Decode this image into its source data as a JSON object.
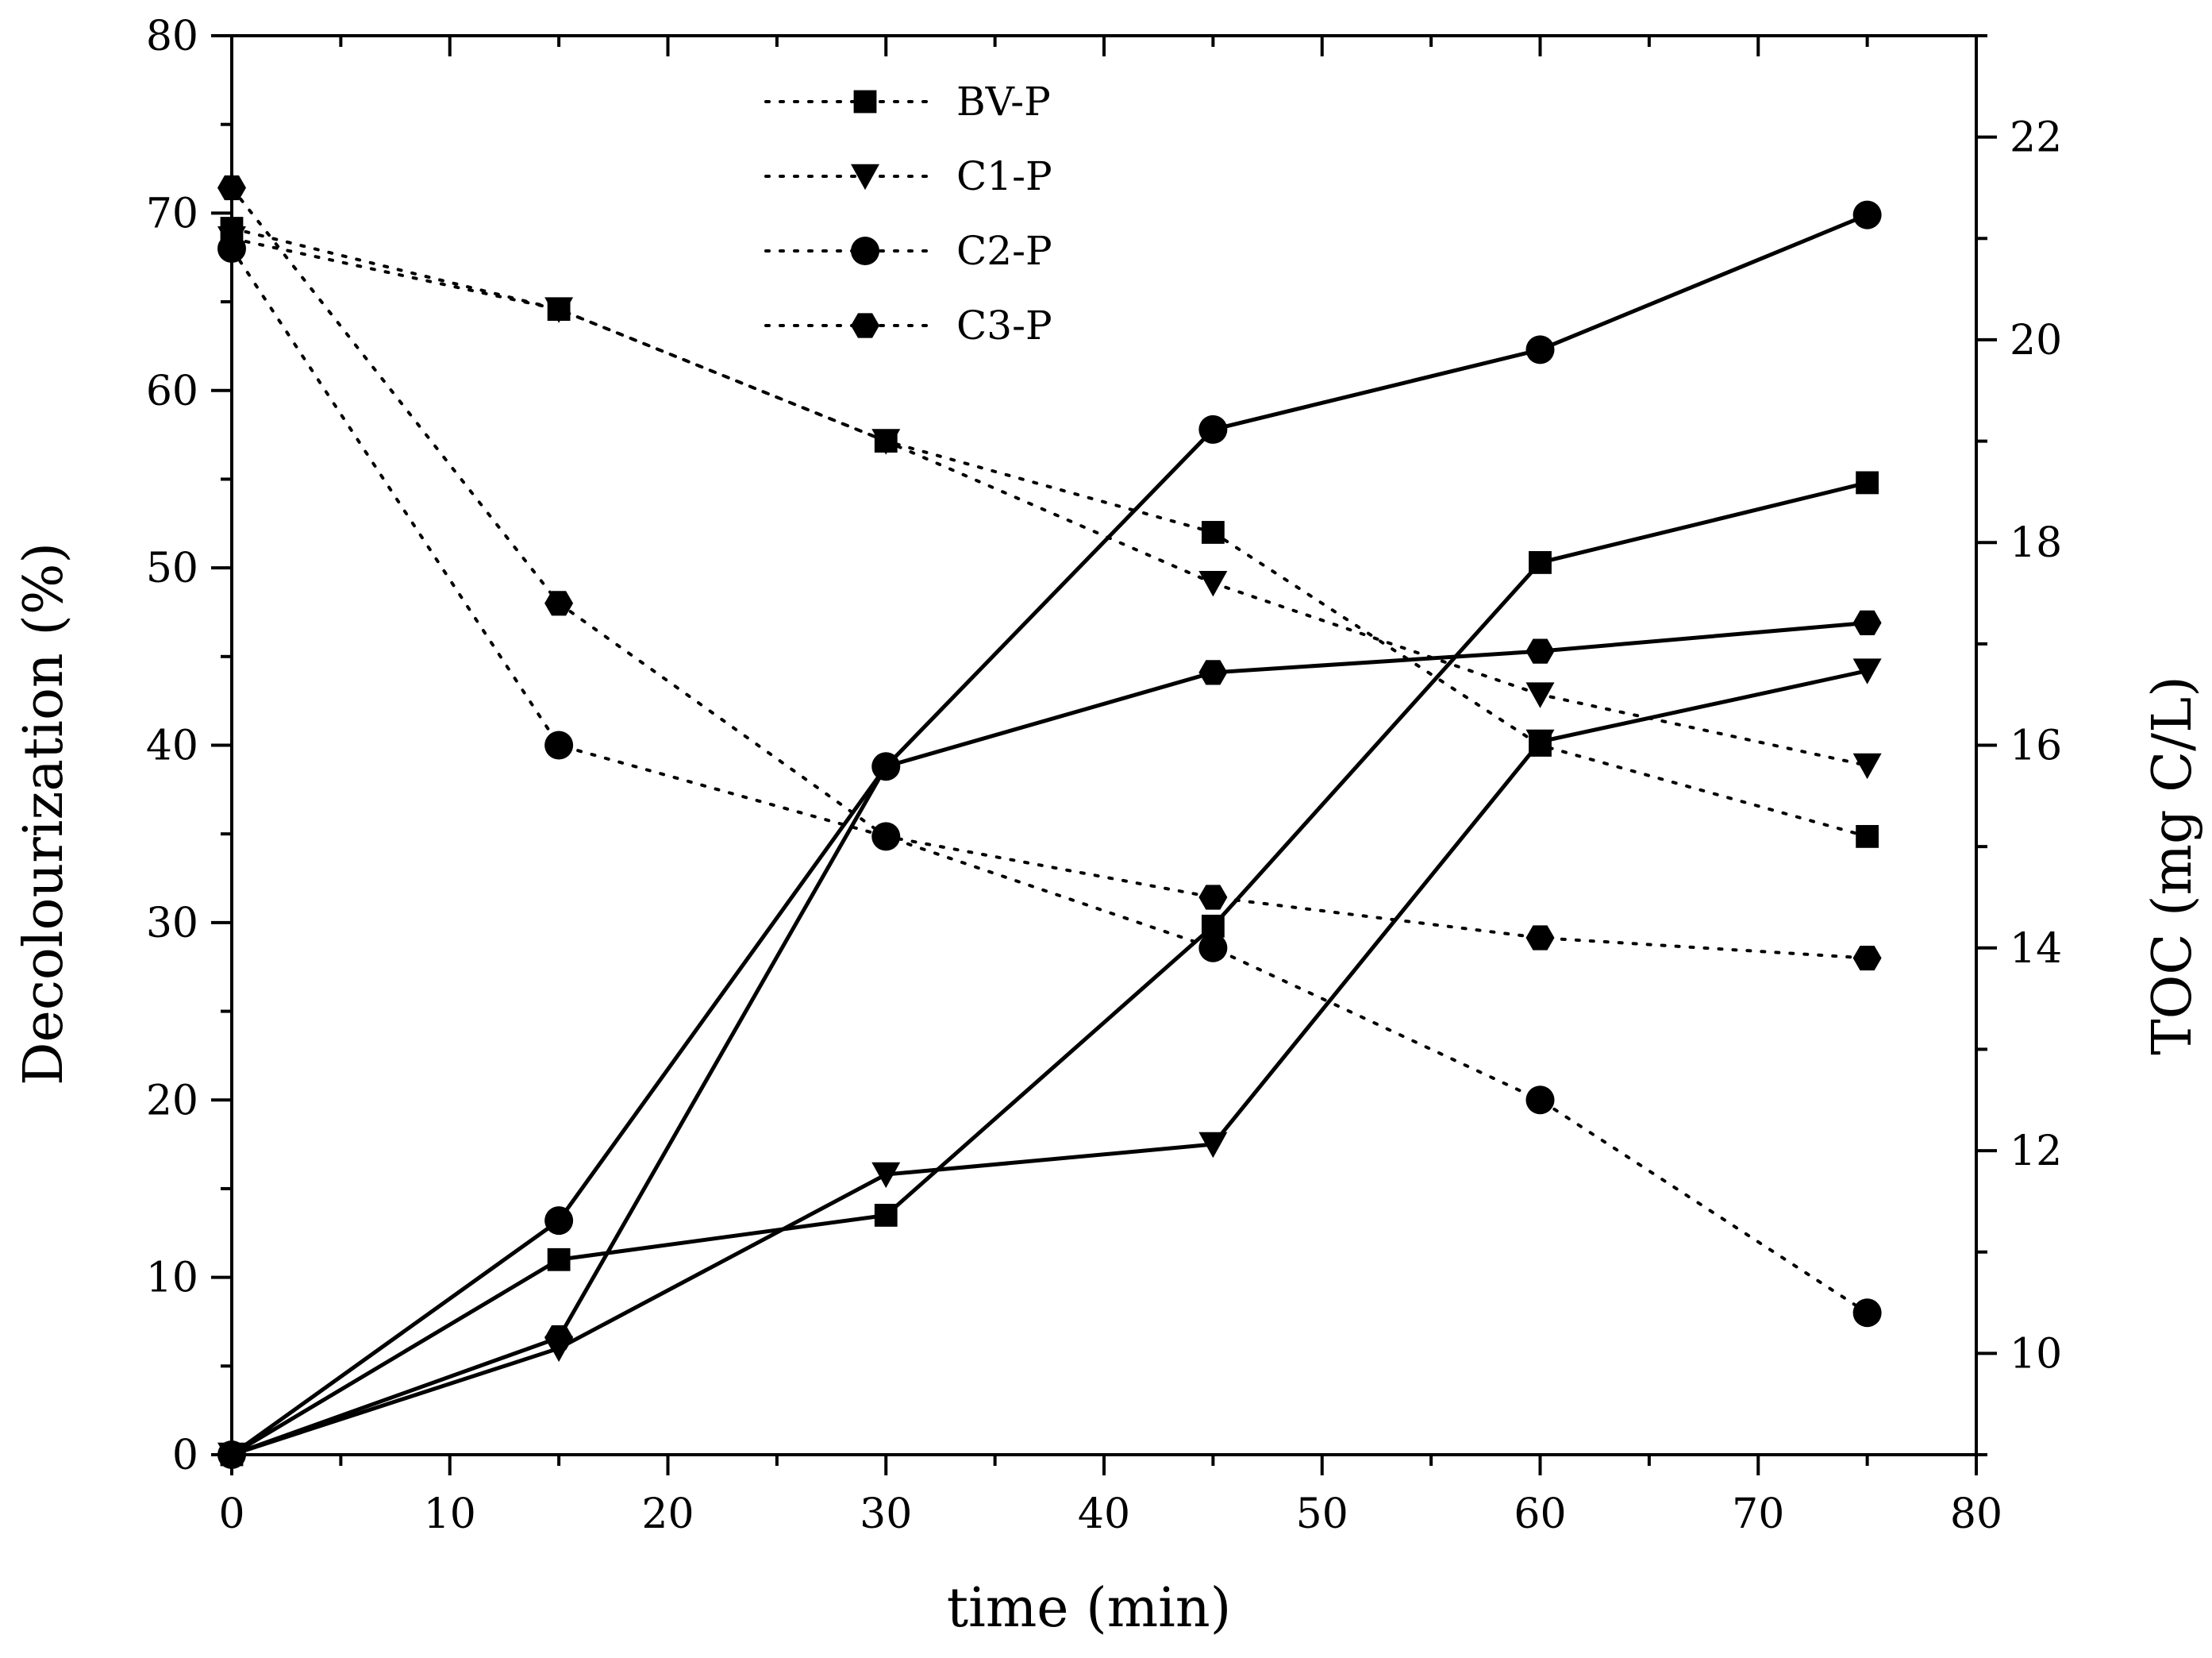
{
  "chart_data": {
    "type": "line",
    "xlabel": "time (min)",
    "ylabel_left": "Decolourization (%)",
    "ylabel_right": "TOC (mg C/L)",
    "xlim": [
      0,
      80
    ],
    "ylim_left": [
      0,
      80
    ],
    "ylim_right": [
      9,
      23
    ],
    "x_ticks": [
      0,
      10,
      20,
      30,
      40,
      50,
      60,
      70,
      80
    ],
    "y_left_ticks": [
      0,
      10,
      20,
      30,
      40,
      50,
      60,
      70,
      80
    ],
    "y_right_ticks": [
      10,
      12,
      14,
      16,
      18,
      20,
      22
    ],
    "grid": false,
    "legend_position": "top-center",
    "legend_style": "dotted",
    "series": [
      {
        "name": "BV-P",
        "marker": "square",
        "decolourization": {
          "x": [
            0,
            15,
            30,
            45,
            60,
            75
          ],
          "y": [
            0,
            11,
            13.5,
            29.8,
            50.3,
            54.8
          ]
        },
        "toc": {
          "x": [
            0,
            15,
            30,
            45,
            60,
            75
          ],
          "y": [
            21.1,
            20.3,
            19.0,
            18.1,
            16.0,
            15.1
          ]
        }
      },
      {
        "name": "C1-P",
        "marker": "triangle-down",
        "decolourization": {
          "x": [
            0,
            15,
            30,
            45,
            60,
            75
          ],
          "y": [
            0,
            6,
            15.8,
            17.5,
            40.2,
            44.2
          ]
        },
        "toc": {
          "x": [
            0,
            15,
            30,
            45,
            60,
            75
          ],
          "y": [
            21.0,
            20.3,
            19.0,
            17.6,
            16.5,
            15.8
          ]
        }
      },
      {
        "name": "C2-P",
        "marker": "circle",
        "decolourization": {
          "x": [
            0,
            15,
            30,
            45,
            60,
            75
          ],
          "y": [
            0,
            13.2,
            38.8,
            57.8,
            62.3,
            69.9
          ]
        },
        "toc": {
          "x": [
            0,
            15,
            30,
            45,
            60,
            75
          ],
          "y": [
            20.9,
            16.0,
            15.1,
            14.0,
            12.5,
            10.4
          ]
        }
      },
      {
        "name": "C3-P",
        "marker": "hexagon",
        "decolourization": {
          "x": [
            0,
            15,
            30,
            45,
            60,
            75
          ],
          "y": [
            0,
            6.6,
            38.8,
            44.1,
            45.3,
            46.9
          ]
        },
        "toc": {
          "x": [
            0,
            15,
            30,
            45,
            60,
            75
          ],
          "y": [
            21.5,
            17.4,
            15.1,
            14.5,
            14.1,
            13.9
          ]
        }
      }
    ]
  }
}
